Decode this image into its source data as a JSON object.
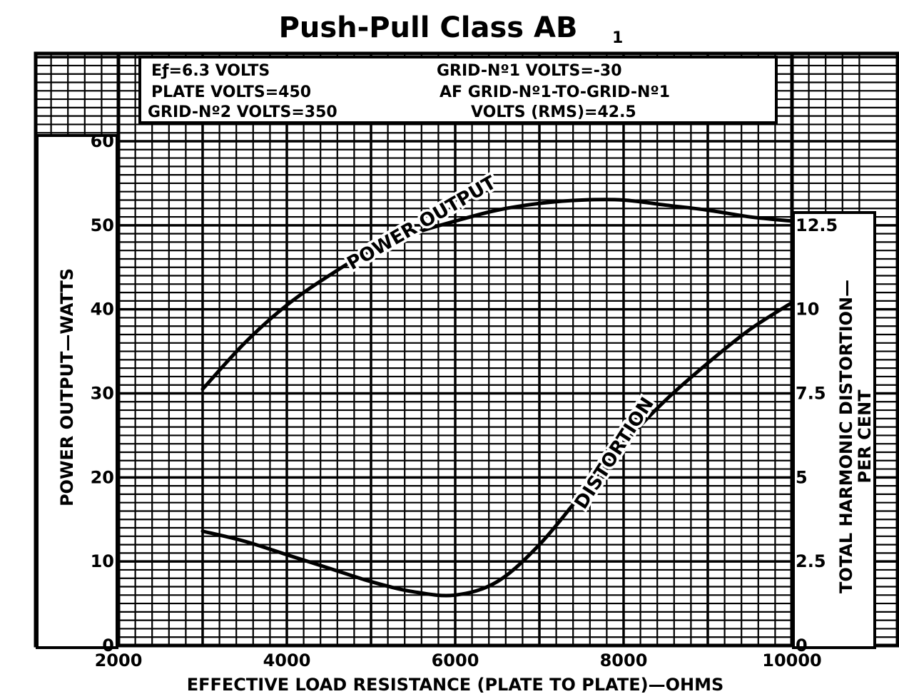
{
  "chart_data": {
    "type": "line",
    "title": "Push-Pull Class AB",
    "title_subscript": "1",
    "conditions": [
      "Eƒ=6.3 VOLTS",
      "PLATE VOLTS=450",
      "GRID-Nº2 VOLTS=350",
      "GRID-Nº1 VOLTS=-30",
      "AF GRID-Nº1-TO-GRID-Nº1",
      "VOLTS (RMS)=42.5"
    ],
    "xlabel": "EFFECTIVE LOAD RESISTANCE (PLATE TO PLATE)—OHMS",
    "ylabel": "POWER OUTPUT—WATTS",
    "y2label_line1": "TOTAL HARMONIC DISTORTION—",
    "y2label_line2": "PER CENT",
    "xlim": [
      2000,
      10000
    ],
    "ylim": [
      0,
      60
    ],
    "y2lim": [
      0,
      15
    ],
    "x_ticks": [
      "2000",
      "4000",
      "6000",
      "8000",
      "10000"
    ],
    "y_ticks": [
      "0",
      "10",
      "20",
      "30",
      "40",
      "50",
      "60"
    ],
    "y2_ticks": [
      "0",
      "2.5",
      "5",
      "7.5",
      "10",
      "12.5"
    ],
    "grid": true,
    "series": [
      {
        "name": "POWER OUTPUT",
        "axis": "left",
        "x": [
          3000,
          3500,
          4000,
          4500,
          5000,
          5500,
          6000,
          6500,
          7000,
          7500,
          8000,
          8500,
          9000,
          9500,
          10000
        ],
        "values": [
          30.5,
          36.0,
          40.5,
          44.0,
          47.0,
          49.0,
          50.5,
          51.8,
          52.6,
          53.0,
          53.0,
          52.4,
          51.8,
          51.0,
          50.5
        ]
      },
      {
        "name": "DISTORTION",
        "axis": "right",
        "x": [
          3000,
          3500,
          4000,
          4500,
          5000,
          5500,
          6000,
          6500,
          7000,
          7500,
          8000,
          8500,
          9000,
          9500,
          10000
        ],
        "values": [
          3.4,
          3.1,
          2.7,
          2.3,
          1.9,
          1.6,
          1.5,
          1.9,
          3.0,
          4.5,
          6.0,
          7.3,
          8.4,
          9.4,
          10.2
        ]
      }
    ]
  }
}
